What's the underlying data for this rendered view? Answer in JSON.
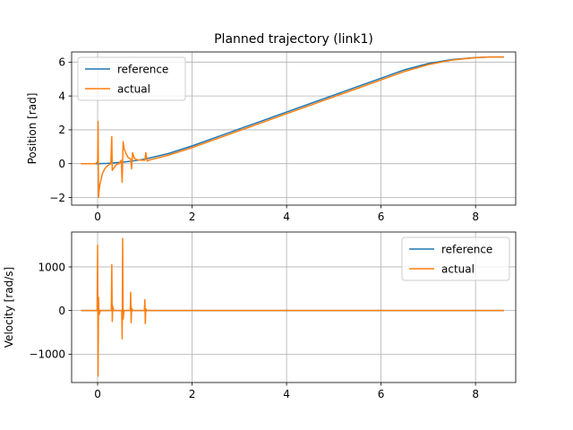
{
  "chart_data": [
    {
      "type": "line",
      "title": "Planned trajectory (link1)",
      "xlabel": "",
      "ylabel": "Position [rad]",
      "xlim": [
        -0.55,
        8.85
      ],
      "ylim": [
        -2.45,
        6.6
      ],
      "xticks": [
        0,
        2,
        4,
        6,
        8
      ],
      "yticks": [
        -2,
        0,
        2,
        4,
        6
      ],
      "grid": true,
      "legend": "top-left",
      "series": [
        {
          "name": "reference",
          "color": "#1f77b4",
          "x": [
            -0.35,
            0.0,
            0.2,
            0.5,
            0.8,
            1.0,
            1.5,
            2.0,
            2.5,
            3.0,
            3.5,
            4.0,
            4.5,
            5.0,
            5.5,
            6.0,
            6.5,
            7.0,
            7.5,
            8.0,
            8.3,
            8.6
          ],
          "y": [
            0,
            0,
            0.02,
            0.08,
            0.18,
            0.27,
            0.6,
            1.05,
            1.55,
            2.05,
            2.55,
            3.05,
            3.55,
            4.05,
            4.55,
            5.05,
            5.55,
            5.92,
            6.15,
            6.27,
            6.3,
            6.3
          ]
        },
        {
          "name": "actual",
          "color": "#ff7f0e",
          "x": [
            -0.35,
            -0.05,
            0.0,
            0.01,
            0.02,
            0.03,
            0.05,
            0.1,
            0.15,
            0.2,
            0.25,
            0.28,
            0.3,
            0.31,
            0.33,
            0.36,
            0.4,
            0.45,
            0.5,
            0.52,
            0.54,
            0.56,
            0.6,
            0.65,
            0.7,
            0.72,
            0.74,
            0.78,
            0.85,
            0.95,
            1.0,
            1.02,
            1.05,
            1.1,
            1.5,
            2.0,
            2.5,
            3.0,
            3.5,
            4.0,
            4.5,
            5.0,
            5.5,
            6.0,
            6.5,
            7.0,
            7.5,
            8.0,
            8.3,
            8.6
          ],
          "y": [
            0,
            0,
            0.1,
            2.5,
            -2.0,
            -1.6,
            -1.2,
            -0.6,
            -0.3,
            -0.15,
            -0.05,
            0,
            1.6,
            -0.4,
            -0.3,
            -0.2,
            -0.05,
            0,
            0.2,
            -1.1,
            1.3,
            0.9,
            0.6,
            0.35,
            0.28,
            -0.3,
            0.65,
            0.3,
            0.22,
            0.2,
            0.2,
            0.65,
            0.15,
            0.22,
            0.5,
            0.95,
            1.45,
            1.95,
            2.45,
            2.95,
            3.45,
            3.95,
            4.45,
            4.95,
            5.45,
            5.85,
            6.12,
            6.26,
            6.3,
            6.3
          ]
        }
      ]
    },
    {
      "type": "line",
      "title": "",
      "xlabel": "",
      "ylabel": "Velocity [rad/s]",
      "xlim": [
        -0.55,
        8.85
      ],
      "ylim": [
        -1650,
        1800
      ],
      "xticks": [
        0,
        2,
        4,
        6,
        8
      ],
      "yticks": [
        -1000,
        0,
        1000
      ],
      "grid": true,
      "legend": "top-right",
      "series": [
        {
          "name": "reference",
          "color": "#1f77b4",
          "x": [
            -0.35,
            8.6
          ],
          "y": [
            0,
            0
          ]
        },
        {
          "name": "actual",
          "color": "#ff7f0e",
          "x": [
            -0.35,
            -0.01,
            0.0,
            0.01,
            0.02,
            0.03,
            0.06,
            0.29,
            0.3,
            0.31,
            0.32,
            0.34,
            0.51,
            0.52,
            0.53,
            0.54,
            0.56,
            0.69,
            0.7,
            0.71,
            0.72,
            0.74,
            0.99,
            1.0,
            1.01,
            1.02,
            1.04,
            8.6
          ],
          "y": [
            0,
            0,
            1500,
            -1500,
            300,
            -100,
            0,
            0,
            1050,
            -250,
            100,
            0,
            0,
            -650,
            1650,
            -200,
            0,
            0,
            420,
            -280,
            60,
            0,
            0,
            250,
            -300,
            40,
            0,
            0
          ]
        }
      ]
    }
  ]
}
